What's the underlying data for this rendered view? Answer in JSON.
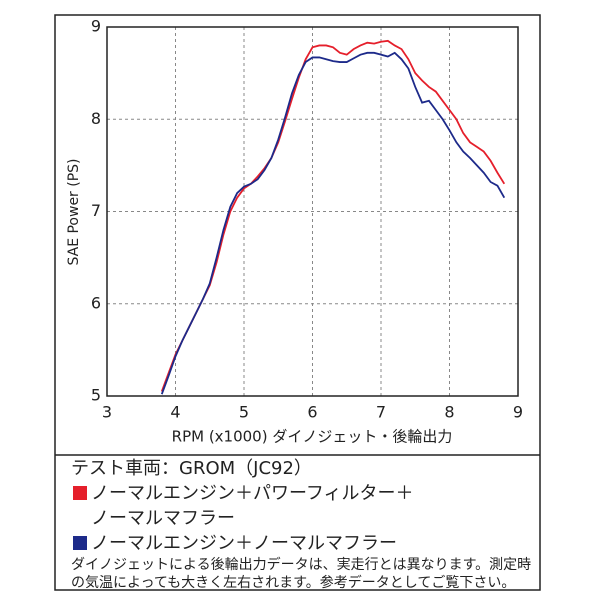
{
  "chart_data": {
    "type": "line",
    "xlabel": "RPM (x1000) ダイノジェット・後輪出力",
    "ylabel": "SAE Power (PS)",
    "x": [
      3.8,
      3.9,
      4.0,
      4.1,
      4.2,
      4.3,
      4.4,
      4.5,
      4.6,
      4.7,
      4.8,
      4.9,
      5.0,
      5.1,
      5.2,
      5.3,
      5.4,
      5.5,
      5.6,
      5.7,
      5.8,
      5.9,
      6.0,
      6.1,
      6.2,
      6.3,
      6.4,
      6.5,
      6.6,
      6.7,
      6.8,
      6.9,
      7.0,
      7.1,
      7.2,
      7.3,
      7.4,
      7.5,
      7.6,
      7.7,
      7.8,
      7.9,
      8.0,
      8.1,
      8.2,
      8.3,
      8.4,
      8.5,
      8.6,
      8.7,
      8.8
    ],
    "series": [
      {
        "name": "ノーマルエンジン＋パワーフィルター＋ノーマルマフラー",
        "color": "#e51f2b",
        "values": [
          5.05,
          5.25,
          5.45,
          5.6,
          5.75,
          5.9,
          6.05,
          6.2,
          6.45,
          6.75,
          7.0,
          7.15,
          7.25,
          7.3,
          7.38,
          7.47,
          7.58,
          7.75,
          7.98,
          8.22,
          8.45,
          8.65,
          8.78,
          8.8,
          8.8,
          8.78,
          8.72,
          8.7,
          8.76,
          8.8,
          8.83,
          8.82,
          8.84,
          8.85,
          8.8,
          8.76,
          8.65,
          8.5,
          8.42,
          8.35,
          8.3,
          8.2,
          8.1,
          8.0,
          7.85,
          7.75,
          7.7,
          7.65,
          7.55,
          7.42,
          7.3
        ]
      },
      {
        "name": "ノーマルエンジン＋ノーマルマフラー",
        "color": "#1d2a8a",
        "values": [
          5.02,
          5.22,
          5.43,
          5.6,
          5.75,
          5.9,
          6.05,
          6.22,
          6.5,
          6.8,
          7.05,
          7.2,
          7.27,
          7.3,
          7.35,
          7.45,
          7.58,
          7.78,
          8.02,
          8.28,
          8.48,
          8.62,
          8.67,
          8.67,
          8.65,
          8.63,
          8.62,
          8.62,
          8.66,
          8.7,
          8.72,
          8.72,
          8.7,
          8.68,
          8.72,
          8.65,
          8.55,
          8.35,
          8.18,
          8.2,
          8.1,
          8.0,
          7.88,
          7.75,
          7.65,
          7.58,
          7.5,
          7.42,
          7.32,
          7.28,
          7.15
        ]
      }
    ],
    "xlim": [
      3,
      9
    ],
    "xticks": [
      3,
      4,
      5,
      6,
      7,
      8,
      9
    ],
    "ylim": [
      5,
      9
    ],
    "yticks": [
      5,
      6,
      7,
      8,
      9
    ],
    "grid": true,
    "legend_title": "テスト車両：GROM（JC92）",
    "note": [
      "ダイノジェットによる後輪出力データは、実走行とは異なります。測定時",
      "の気温によっても大きく左右されます。参考データとしてご覧下さい。"
    ]
  }
}
